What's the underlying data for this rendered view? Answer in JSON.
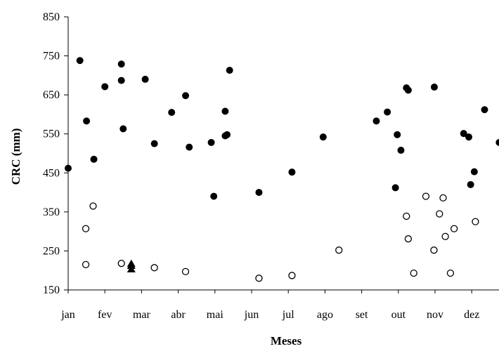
{
  "chart_data": {
    "type": "scatter",
    "xlabel": "Meses",
    "ylabel": "CRC (mm)",
    "ylim": [
      150,
      850
    ],
    "yticks": [
      150,
      250,
      350,
      450,
      550,
      650,
      750,
      850
    ],
    "xlim": [
      0,
      11.75
    ],
    "xticks": [
      {
        "label": "jan",
        "value": 0
      },
      {
        "label": "fev",
        "value": 1
      },
      {
        "label": "mar",
        "value": 2
      },
      {
        "label": "abr",
        "value": 3
      },
      {
        "label": "mai",
        "value": 4
      },
      {
        "label": "jun",
        "value": 5
      },
      {
        "label": "jul",
        "value": 6
      },
      {
        "label": "ago",
        "value": 7
      },
      {
        "label": "set",
        "value": 8
      },
      {
        "label": "out",
        "value": 9
      },
      {
        "label": "nov",
        "value": 10
      },
      {
        "label": "dez",
        "value": 11
      }
    ],
    "grid": false,
    "legend": "none",
    "series": [
      {
        "marker": "filled-circle",
        "color": "#000000",
        "points": [
          {
            "x": 0.0,
            "y": 462
          },
          {
            "x": 0.32,
            "y": 738
          },
          {
            "x": 0.5,
            "y": 583
          },
          {
            "x": 0.7,
            "y": 485
          },
          {
            "x": 1.0,
            "y": 671
          },
          {
            "x": 1.45,
            "y": 729
          },
          {
            "x": 1.45,
            "y": 687
          },
          {
            "x": 1.5,
            "y": 563
          },
          {
            "x": 2.1,
            "y": 690
          },
          {
            "x": 2.35,
            "y": 525
          },
          {
            "x": 2.82,
            "y": 605
          },
          {
            "x": 3.2,
            "y": 648
          },
          {
            "x": 3.3,
            "y": 516
          },
          {
            "x": 3.9,
            "y": 528
          },
          {
            "x": 3.97,
            "y": 390
          },
          {
            "x": 4.28,
            "y": 608
          },
          {
            "x": 4.28,
            "y": 545
          },
          {
            "x": 4.33,
            "y": 548
          },
          {
            "x": 4.4,
            "y": 713
          },
          {
            "x": 5.2,
            "y": 400
          },
          {
            "x": 6.1,
            "y": 452
          },
          {
            "x": 6.95,
            "y": 542
          },
          {
            "x": 8.4,
            "y": 583
          },
          {
            "x": 8.7,
            "y": 606
          },
          {
            "x": 8.92,
            "y": 412
          },
          {
            "x": 8.97,
            "y": 548
          },
          {
            "x": 9.07,
            "y": 508
          },
          {
            "x": 9.22,
            "y": 668
          },
          {
            "x": 9.27,
            "y": 662
          },
          {
            "x": 9.98,
            "y": 670
          },
          {
            "x": 10.78,
            "y": 551
          },
          {
            "x": 10.92,
            "y": 542
          },
          {
            "x": 10.97,
            "y": 420
          },
          {
            "x": 11.07,
            "y": 453
          },
          {
            "x": 11.35,
            "y": 612
          },
          {
            "x": 11.75,
            "y": 528
          }
        ]
      },
      {
        "marker": "open-circle",
        "color": "#000000",
        "points": [
          {
            "x": 0.48,
            "y": 307
          },
          {
            "x": 0.48,
            "y": 215
          },
          {
            "x": 0.68,
            "y": 365
          },
          {
            "x": 1.45,
            "y": 218
          },
          {
            "x": 2.35,
            "y": 207
          },
          {
            "x": 3.2,
            "y": 197
          },
          {
            "x": 5.2,
            "y": 180
          },
          {
            "x": 6.1,
            "y": 187
          },
          {
            "x": 7.38,
            "y": 252
          },
          {
            "x": 9.22,
            "y": 339
          },
          {
            "x": 9.27,
            "y": 281
          },
          {
            "x": 9.42,
            "y": 193
          },
          {
            "x": 9.75,
            "y": 390
          },
          {
            "x": 9.97,
            "y": 252
          },
          {
            "x": 10.12,
            "y": 345
          },
          {
            "x": 10.22,
            "y": 386
          },
          {
            "x": 10.28,
            "y": 287
          },
          {
            "x": 10.42,
            "y": 193
          },
          {
            "x": 10.52,
            "y": 307
          },
          {
            "x": 11.1,
            "y": 325
          }
        ]
      },
      {
        "marker": "filled-triangle",
        "color": "#000000",
        "points": [
          {
            "x": 1.72,
            "y": 217
          },
          {
            "x": 1.72,
            "y": 212
          },
          {
            "x": 1.72,
            "y": 203
          }
        ]
      }
    ]
  }
}
